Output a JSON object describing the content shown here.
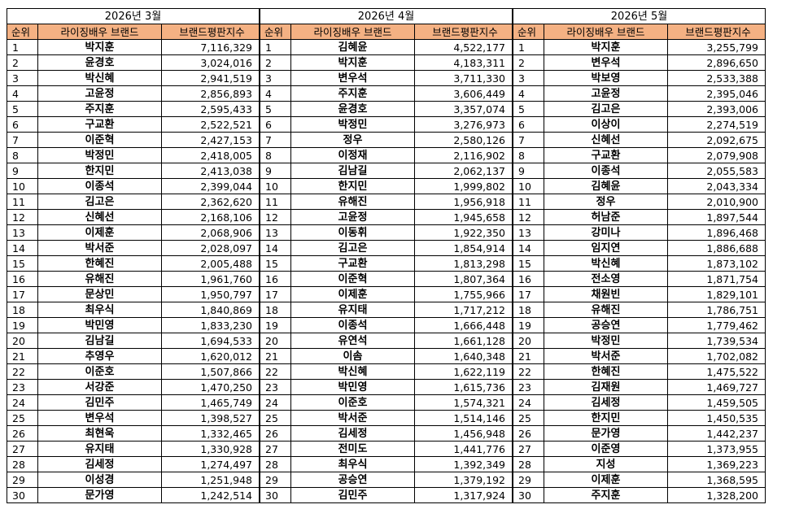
{
  "headers": {
    "rank": "순위",
    "brand": "라이징배우 브랜드",
    "score": "브랜드평판지수"
  },
  "months": [
    {
      "label": "2026년 3월",
      "rows": [
        {
          "rank": "1",
          "name": "박지훈",
          "score": "7,116,329"
        },
        {
          "rank": "2",
          "name": "윤경호",
          "score": "3,024,016"
        },
        {
          "rank": "3",
          "name": "박신혜",
          "score": "2,941,519"
        },
        {
          "rank": "4",
          "name": "고윤정",
          "score": "2,856,893"
        },
        {
          "rank": "5",
          "name": "주지훈",
          "score": "2,595,433"
        },
        {
          "rank": "6",
          "name": "구교환",
          "score": "2,522,521"
        },
        {
          "rank": "7",
          "name": "이준혁",
          "score": "2,427,153"
        },
        {
          "rank": "8",
          "name": "박정민",
          "score": "2,418,005"
        },
        {
          "rank": "9",
          "name": "한지민",
          "score": "2,413,038"
        },
        {
          "rank": "10",
          "name": "이종석",
          "score": "2,399,044"
        },
        {
          "rank": "11",
          "name": "김고은",
          "score": "2,362,620"
        },
        {
          "rank": "12",
          "name": "신혜선",
          "score": "2,168,106"
        },
        {
          "rank": "13",
          "name": "이제훈",
          "score": "2,068,906"
        },
        {
          "rank": "14",
          "name": "박서준",
          "score": "2,028,097"
        },
        {
          "rank": "15",
          "name": "한혜진",
          "score": "2,005,488"
        },
        {
          "rank": "16",
          "name": "유해진",
          "score": "1,961,760"
        },
        {
          "rank": "17",
          "name": "문상민",
          "score": "1,950,797"
        },
        {
          "rank": "18",
          "name": "최우식",
          "score": "1,840,869"
        },
        {
          "rank": "19",
          "name": "박민영",
          "score": "1,833,230"
        },
        {
          "rank": "20",
          "name": "김남길",
          "score": "1,694,533"
        },
        {
          "rank": "21",
          "name": "추영우",
          "score": "1,620,012"
        },
        {
          "rank": "22",
          "name": "이준호",
          "score": "1,507,866"
        },
        {
          "rank": "23",
          "name": "서강준",
          "score": "1,470,250"
        },
        {
          "rank": "24",
          "name": "김민주",
          "score": "1,465,749"
        },
        {
          "rank": "25",
          "name": "변우석",
          "score": "1,398,527"
        },
        {
          "rank": "26",
          "name": "최현욱",
          "score": "1,332,465"
        },
        {
          "rank": "27",
          "name": "유지태",
          "score": "1,330,928"
        },
        {
          "rank": "28",
          "name": "김세정",
          "score": "1,274,497"
        },
        {
          "rank": "29",
          "name": "이성경",
          "score": "1,251,948"
        },
        {
          "rank": "30",
          "name": "문가영",
          "score": "1,242,514"
        }
      ]
    },
    {
      "label": "2026년 4월",
      "rows": [
        {
          "rank": "1",
          "name": "김혜윤",
          "score": "4,522,177"
        },
        {
          "rank": "2",
          "name": "박지훈",
          "score": "4,183,311"
        },
        {
          "rank": "3",
          "name": "변우석",
          "score": "3,711,330"
        },
        {
          "rank": "4",
          "name": "주지훈",
          "score": "3,606,449"
        },
        {
          "rank": "5",
          "name": "윤경호",
          "score": "3,357,074"
        },
        {
          "rank": "6",
          "name": "박정민",
          "score": "3,276,973"
        },
        {
          "rank": "7",
          "name": "정우",
          "score": "2,580,126"
        },
        {
          "rank": "8",
          "name": "이정재",
          "score": "2,116,902"
        },
        {
          "rank": "9",
          "name": "김남길",
          "score": "2,062,137"
        },
        {
          "rank": "10",
          "name": "한지민",
          "score": "1,999,802"
        },
        {
          "rank": "11",
          "name": "유해진",
          "score": "1,956,918"
        },
        {
          "rank": "12",
          "name": "고윤정",
          "score": "1,945,658"
        },
        {
          "rank": "13",
          "name": "이동휘",
          "score": "1,922,350"
        },
        {
          "rank": "14",
          "name": "김고은",
          "score": "1,854,914"
        },
        {
          "rank": "15",
          "name": "구교환",
          "score": "1,813,298"
        },
        {
          "rank": "16",
          "name": "이준혁",
          "score": "1,807,364"
        },
        {
          "rank": "17",
          "name": "이제훈",
          "score": "1,755,966"
        },
        {
          "rank": "18",
          "name": "유지태",
          "score": "1,717,212"
        },
        {
          "rank": "19",
          "name": "이종석",
          "score": "1,666,448"
        },
        {
          "rank": "20",
          "name": "유연석",
          "score": "1,661,128"
        },
        {
          "rank": "21",
          "name": "이솜",
          "score": "1,640,348"
        },
        {
          "rank": "22",
          "name": "박신혜",
          "score": "1,622,119"
        },
        {
          "rank": "23",
          "name": "박민영",
          "score": "1,615,736"
        },
        {
          "rank": "24",
          "name": "이준호",
          "score": "1,574,321"
        },
        {
          "rank": "25",
          "name": "박서준",
          "score": "1,514,146"
        },
        {
          "rank": "26",
          "name": "김세정",
          "score": "1,456,948"
        },
        {
          "rank": "27",
          "name": "전미도",
          "score": "1,441,776"
        },
        {
          "rank": "28",
          "name": "최우식",
          "score": "1,392,349"
        },
        {
          "rank": "29",
          "name": "공승연",
          "score": "1,379,192"
        },
        {
          "rank": "30",
          "name": "김민주",
          "score": "1,317,924"
        }
      ]
    },
    {
      "label": "2026년 5월",
      "rows": [
        {
          "rank": "1",
          "name": "박지훈",
          "score": "3,255,799"
        },
        {
          "rank": "2",
          "name": "변우석",
          "score": "2,896,650"
        },
        {
          "rank": "3",
          "name": "박보영",
          "score": "2,533,388"
        },
        {
          "rank": "4",
          "name": "고윤정",
          "score": "2,395,046"
        },
        {
          "rank": "5",
          "name": "김고은",
          "score": "2,393,006"
        },
        {
          "rank": "6",
          "name": "이상이",
          "score": "2,274,519"
        },
        {
          "rank": "7",
          "name": "신혜선",
          "score": "2,092,675"
        },
        {
          "rank": "8",
          "name": "구교환",
          "score": "2,079,908"
        },
        {
          "rank": "9",
          "name": "이종석",
          "score": "2,055,583"
        },
        {
          "rank": "10",
          "name": "김혜윤",
          "score": "2,043,334"
        },
        {
          "rank": "11",
          "name": "정우",
          "score": "2,010,900"
        },
        {
          "rank": "12",
          "name": "허남준",
          "score": "1,897,544"
        },
        {
          "rank": "13",
          "name": "강미나",
          "score": "1,896,468"
        },
        {
          "rank": "14",
          "name": "임지연",
          "score": "1,886,688"
        },
        {
          "rank": "15",
          "name": "박신혜",
          "score": "1,873,102"
        },
        {
          "rank": "16",
          "name": "전소영",
          "score": "1,871,754"
        },
        {
          "rank": "17",
          "name": "채원빈",
          "score": "1,829,101"
        },
        {
          "rank": "18",
          "name": "유해진",
          "score": "1,786,751"
        },
        {
          "rank": "19",
          "name": "공승연",
          "score": "1,779,462"
        },
        {
          "rank": "20",
          "name": "박정민",
          "score": "1,739,534"
        },
        {
          "rank": "21",
          "name": "박서준",
          "score": "1,702,082"
        },
        {
          "rank": "22",
          "name": "한혜진",
          "score": "1,475,522"
        },
        {
          "rank": "23",
          "name": "김재원",
          "score": "1,469,727"
        },
        {
          "rank": "24",
          "name": "김세정",
          "score": "1,459,505"
        },
        {
          "rank": "25",
          "name": "한지민",
          "score": "1,450,535"
        },
        {
          "rank": "26",
          "name": "문가영",
          "score": "1,442,237"
        },
        {
          "rank": "27",
          "name": "이준영",
          "score": "1,373,955"
        },
        {
          "rank": "28",
          "name": "지성",
          "score": "1,369,223"
        },
        {
          "rank": "29",
          "name": "이제훈",
          "score": "1,368,595"
        },
        {
          "rank": "30",
          "name": "주지훈",
          "score": "1,328,200"
        }
      ]
    }
  ],
  "colors": {
    "header_bg": "#f4b183",
    "border": "#000000",
    "background": "#ffffff"
  }
}
